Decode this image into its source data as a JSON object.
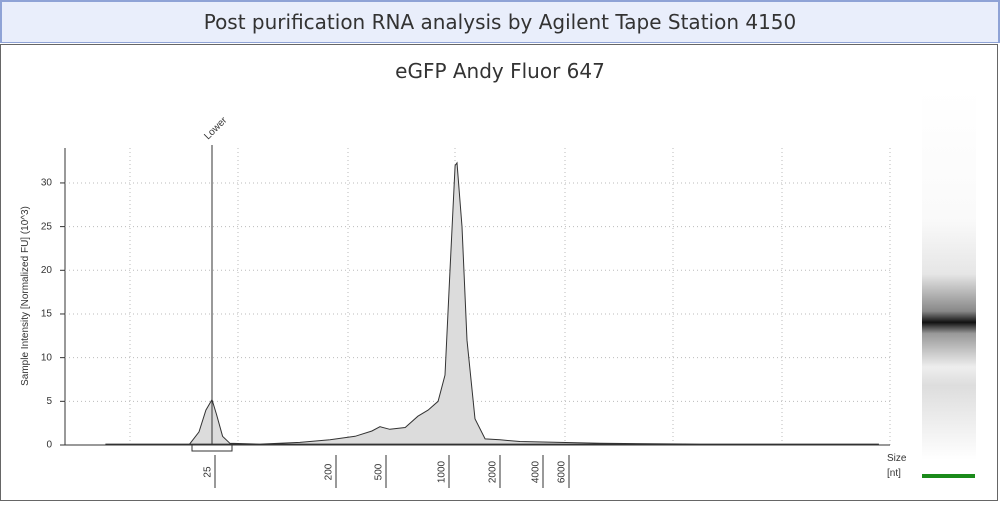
{
  "header": {
    "title": "Post purification RNA analysis by Agilent Tape Station 4150"
  },
  "chart_data": {
    "type": "area",
    "title": "eGFP Andy Fluor 647",
    "ylabel": "Sample Intensity [Normalized FU] (10^3)",
    "xlabel": "Size",
    "xunit": "[nt]",
    "x": [
      4,
      17,
      20,
      22.5,
      25,
      27,
      30,
      34,
      57,
      113,
      190,
      300,
      408,
      473,
      539,
      638,
      734,
      821,
      917,
      989,
      1056,
      1131,
      1162,
      1243,
      1331,
      1484,
      1701,
      2100,
      2894,
      5460,
      10190,
      48300,
      790000
    ],
    "values": [
      0.1,
      0.1,
      1.5,
      4,
      5.2,
      3.5,
      1,
      0.2,
      0.1,
      0.3,
      0.6,
      1,
      1.6,
      2.1,
      1.8,
      2,
      3.3,
      4,
      5,
      8,
      20,
      32,
      32.3,
      25,
      12,
      3,
      0.7,
      0.6,
      0.4,
      0.3,
      0.2,
      0.1,
      0.1
    ],
    "color": "#dcdcdc",
    "line_color": "#333333",
    "xscale": "log",
    "xticks": [
      25,
      200,
      500,
      1000,
      2000,
      4000,
      6000
    ],
    "ylim": [
      0,
      34
    ],
    "yticks": [
      0,
      5,
      10,
      15,
      20,
      25,
      30
    ],
    "grid": true,
    "annotations": [
      {
        "text": "Lower",
        "x": 25
      }
    ]
  }
}
